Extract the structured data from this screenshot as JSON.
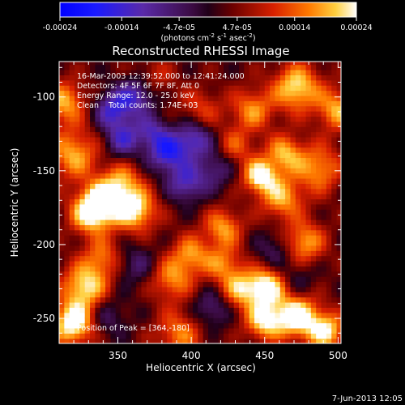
{
  "chart_data": {
    "type": "heatmap",
    "title": "Reconstructed RHESSI Image",
    "xlabel": "Heliocentric X (arcsec)",
    "ylabel": "Heliocentric Y (arcsec)",
    "xlim": [
      310,
      502
    ],
    "ylim": [
      -267,
      -76
    ],
    "x_ticks": [
      350,
      400,
      450,
      500
    ],
    "y_ticks": [
      -100,
      -150,
      -200,
      -250
    ],
    "colorbar": {
      "range": [
        -0.00024,
        0.00024
      ],
      "tick_labels": [
        "-0.00024",
        "-0.00014",
        "-4.7e-05",
        "4.7e-05",
        "0.00014",
        "0.00024"
      ],
      "tick_values": [
        -0.00024,
        -0.00014,
        -4.7e-05,
        4.7e-05,
        0.00014,
        0.00024
      ],
      "unit_prefix": "(photons cm",
      "unit_exp1": "-2",
      "unit_mid": " s",
      "unit_exp2": "-1",
      "unit_mid2": " asec",
      "unit_exp3": "-2",
      "unit_suffix": ")"
    },
    "annotations": {
      "time_range": "16-Mar-2003 12:39:52.000 to 12:41:24.000",
      "detectors": "Detectors: 4F 5F 6F 7F 8F, Att 0",
      "energy": "Energy Range: 12.0 - 25.0 keV",
      "method": "Clean    Total counts: 1.74E+03",
      "peak": "Position of Peak = [364,-180]"
    },
    "peak": [
      364,
      -180
    ],
    "blobs": [
      {
        "x": 326,
        "y": -230,
        "v": 0.0002,
        "s": 11
      },
      {
        "x": 318,
        "y": -255,
        "v": 0.00024,
        "s": 10
      },
      {
        "x": 330,
        "y": -180,
        "v": 0.00022,
        "s": 10
      },
      {
        "x": 340,
        "y": -170,
        "v": 0.00018,
        "s": 10
      },
      {
        "x": 360,
        "y": -178,
        "v": 0.00021,
        "s": 10
      },
      {
        "x": 352,
        "y": -158,
        "v": 0.00012,
        "s": 9
      },
      {
        "x": 318,
        "y": -140,
        "v": 0.00016,
        "s": 12
      },
      {
        "x": 312,
        "y": -105,
        "v": 0.00016,
        "s": 10
      },
      {
        "x": 338,
        "y": -210,
        "v": 0.00012,
        "s": 9
      },
      {
        "x": 385,
        "y": -225,
        "v": 0.00014,
        "s": 10
      },
      {
        "x": 398,
        "y": -208,
        "v": 0.00014,
        "s": 9
      },
      {
        "x": 390,
        "y": -262,
        "v": 0.00013,
        "s": 11
      },
      {
        "x": 420,
        "y": -190,
        "v": 0.00015,
        "s": 9
      },
      {
        "x": 420,
        "y": -215,
        "v": 0.00013,
        "s": 9
      },
      {
        "x": 432,
        "y": -232,
        "v": 0.00016,
        "s": 9
      },
      {
        "x": 448,
        "y": -253,
        "v": 0.0002,
        "s": 9
      },
      {
        "x": 450,
        "y": -230,
        "v": 0.00022,
        "s": 9
      },
      {
        "x": 470,
        "y": -250,
        "v": 0.00024,
        "s": 10
      },
      {
        "x": 490,
        "y": -260,
        "v": 0.0002,
        "s": 9
      },
      {
        "x": 475,
        "y": -200,
        "v": 0.00016,
        "s": 10
      },
      {
        "x": 460,
        "y": -170,
        "v": 0.00016,
        "s": 10
      },
      {
        "x": 445,
        "y": -155,
        "v": 0.00022,
        "s": 8
      },
      {
        "x": 462,
        "y": -140,
        "v": 0.00016,
        "s": 9
      },
      {
        "x": 485,
        "y": -150,
        "v": 0.00015,
        "s": 11
      },
      {
        "x": 498,
        "y": -110,
        "v": 0.00016,
        "s": 10
      },
      {
        "x": 470,
        "y": -95,
        "v": 0.0002,
        "s": 11
      },
      {
        "x": 440,
        "y": -110,
        "v": 0.00014,
        "s": 10
      },
      {
        "x": 428,
        "y": -135,
        "v": 0.0001,
        "s": 9
      },
      {
        "x": 405,
        "y": -110,
        "v": 9e-05,
        "s": 10
      },
      {
        "x": 372,
        "y": -90,
        "v": 8e-05,
        "s": 10
      },
      {
        "x": 345,
        "y": -110,
        "v": -0.00016,
        "s": 9
      },
      {
        "x": 352,
        "y": -130,
        "v": -0.00014,
        "s": 9
      },
      {
        "x": 362,
        "y": -100,
        "v": -0.00016,
        "s": 9
      },
      {
        "x": 382,
        "y": -140,
        "v": -0.00018,
        "s": 9
      },
      {
        "x": 400,
        "y": -130,
        "v": -0.00016,
        "s": 9
      },
      {
        "x": 395,
        "y": -160,
        "v": -0.00015,
        "s": 9
      },
      {
        "x": 372,
        "y": -125,
        "v": -0.00012,
        "s": 8
      },
      {
        "x": 415,
        "y": -150,
        "v": -0.0001,
        "s": 9
      },
      {
        "x": 360,
        "y": -215,
        "v": -8e-05,
        "s": 10
      },
      {
        "x": 340,
        "y": -250,
        "v": -8e-05,
        "s": 10
      },
      {
        "x": 412,
        "y": -245,
        "v": -0.0001,
        "s": 9
      },
      {
        "x": 470,
        "y": -225,
        "v": -6e-05,
        "s": 9
      },
      {
        "x": 455,
        "y": -205,
        "v": -8e-05,
        "s": 9
      }
    ]
  },
  "footer": {
    "date": "7-Jun-2013 12:05"
  }
}
